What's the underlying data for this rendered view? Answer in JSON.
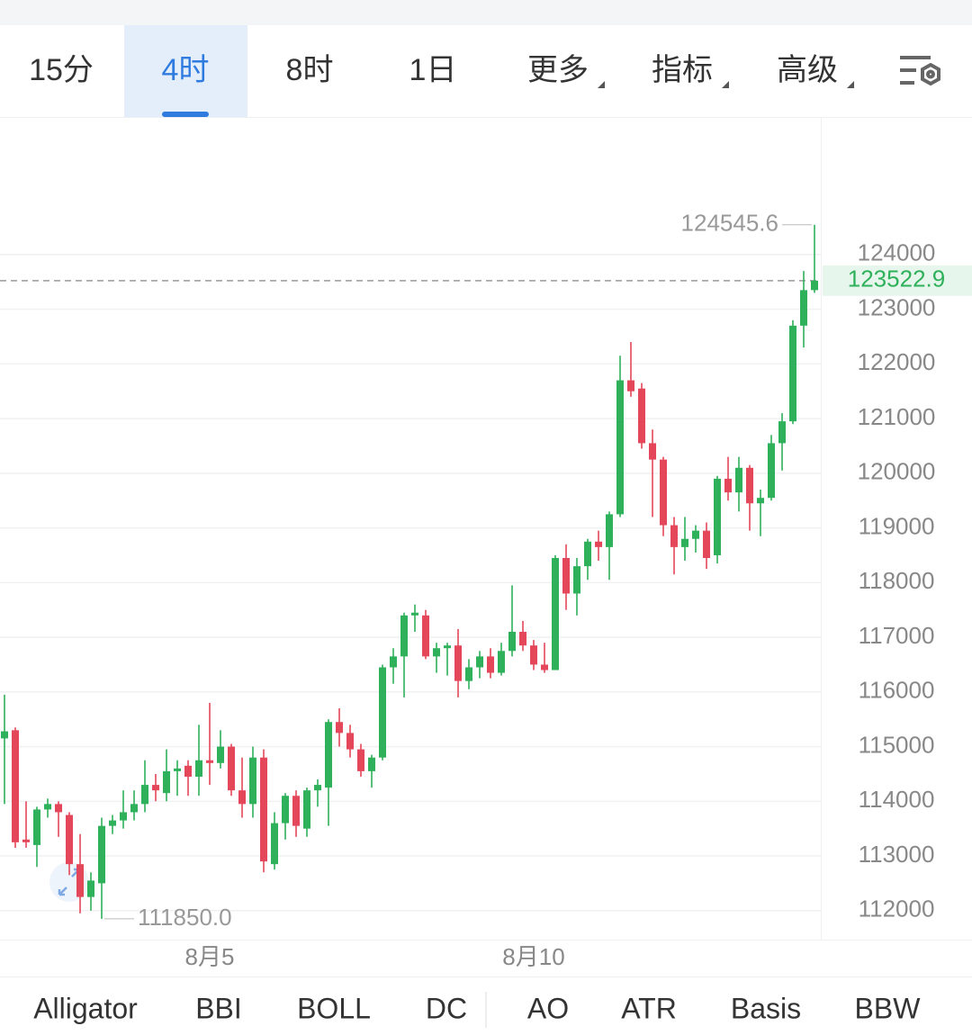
{
  "tabs": [
    "15分",
    "4时",
    "8时",
    "1日",
    "更多",
    "指标",
    "高级"
  ],
  "active_tab": 1,
  "indicators": [
    "Alligator",
    "BBI",
    "BOLL",
    "DC",
    "AO",
    "ATR",
    "Basis",
    "BBW"
  ],
  "chart_data": {
    "type": "candlestick",
    "categories": [
      null,
      null,
      null,
      null,
      null,
      null,
      null,
      null,
      null,
      null,
      null,
      null,
      null,
      null,
      null,
      null,
      null,
      null,
      null,
      "8月5",
      null,
      null,
      null,
      null,
      null,
      null,
      null,
      null,
      null,
      null,
      null,
      null,
      null,
      null,
      null,
      null,
      null,
      null,
      null,
      null,
      null,
      null,
      null,
      null,
      null,
      null,
      null,
      null,
      null,
      "8月10",
      null,
      null,
      null,
      null,
      null,
      null,
      null,
      null,
      null,
      null,
      null,
      null,
      null,
      null,
      null,
      null,
      null,
      null,
      null,
      null,
      null,
      null,
      null,
      null,
      null,
      null
    ],
    "open": [
      115150,
      115300,
      113300,
      113200,
      113850,
      113950,
      113750,
      112850,
      112250,
      112500,
      113550,
      113650,
      113800,
      113950,
      114300,
      114150,
      114550,
      114650,
      114450,
      114750,
      114700,
      115000,
      114200,
      113950,
      114800,
      112850,
      113600,
      114100,
      113500,
      114200,
      114250,
      115450,
      115250,
      114950,
      114550,
      114800,
      116450,
      116650,
      117400,
      117400,
      116650,
      116800,
      116850,
      116200,
      116450,
      116650,
      116350,
      116750,
      117100,
      116850,
      116500,
      116400,
      118450,
      117800,
      118300,
      118750,
      118650,
      119250,
      121700,
      121550,
      120550,
      120250,
      119050,
      118650,
      118800,
      118950,
      118500,
      119900,
      119650,
      120100,
      119450,
      119550,
      120550,
      120950,
      122700,
      123350
    ],
    "high": [
      115950,
      115350,
      114000,
      113900,
      114050,
      114000,
      113800,
      113400,
      112700,
      113700,
      113750,
      114200,
      114200,
      114750,
      114500,
      114950,
      114750,
      114750,
      115400,
      115800,
      115300,
      115050,
      114800,
      115000,
      114950,
      113800,
      114150,
      114200,
      114250,
      114400,
      115500,
      115700,
      115400,
      115050,
      114850,
      116500,
      116800,
      117450,
      117600,
      117500,
      116900,
      116900,
      117150,
      116600,
      116750,
      116800,
      116900,
      117950,
      117300,
      116950,
      116900,
      118500,
      118700,
      118450,
      118800,
      118950,
      119300,
      122150,
      122400,
      121650,
      120800,
      120300,
      119200,
      119200,
      119050,
      119100,
      119950,
      120300,
      120300,
      120150,
      119700,
      120700,
      121100,
      122800,
      123700,
      124545.6
    ],
    "low": [
      113950,
      113150,
      113150,
      112800,
      113700,
      113350,
      112650,
      111950,
      112000,
      111850,
      113400,
      113500,
      113650,
      113800,
      114000,
      114000,
      114100,
      114100,
      114100,
      114300,
      114600,
      114100,
      113700,
      113700,
      112700,
      112750,
      113300,
      113350,
      113350,
      113900,
      113550,
      115000,
      114800,
      114450,
      114250,
      114750,
      116150,
      115900,
      117100,
      116600,
      116350,
      116300,
      115900,
      116050,
      116250,
      116250,
      116300,
      116650,
      116750,
      116400,
      116350,
      116400,
      117500,
      117400,
      118050,
      118400,
      118050,
      119200,
      121400,
      120450,
      119200,
      118850,
      118150,
      118400,
      118550,
      118250,
      118350,
      119500,
      119300,
      118950,
      118850,
      119500,
      120050,
      120900,
      122300,
      123300
    ],
    "close": [
      115280,
      113250,
      113250,
      113850,
      113950,
      113800,
      112850,
      112250,
      112550,
      113550,
      113650,
      113800,
      113950,
      114300,
      114200,
      114550,
      114600,
      114450,
      114750,
      114700,
      115000,
      114200,
      113950,
      114800,
      112900,
      113600,
      114100,
      113550,
      114200,
      114300,
      115450,
      115250,
      114950,
      114550,
      114800,
      116450,
      116650,
      117400,
      117450,
      116650,
      116800,
      116850,
      116200,
      116450,
      116650,
      116350,
      116750,
      117100,
      116850,
      116500,
      116400,
      118450,
      117800,
      118300,
      118750,
      118650,
      119250,
      121700,
      121500,
      120550,
      120250,
      119050,
      118650,
      118800,
      118950,
      118450,
      119900,
      119650,
      120100,
      119450,
      119550,
      120550,
      120950,
      122700,
      123350,
      123522.9
    ],
    "up_color": "#2eb15a",
    "down_color": "#e5475a",
    "ylim": [
      111470,
      126500
    ],
    "yticks": [
      112000,
      113000,
      114000,
      115000,
      116000,
      117000,
      118000,
      119000,
      120000,
      121000,
      122000,
      123000,
      124000
    ],
    "grid": true,
    "high_label": "124545.6",
    "low_label": "111850.0",
    "last_price_label": "123522.9"
  }
}
